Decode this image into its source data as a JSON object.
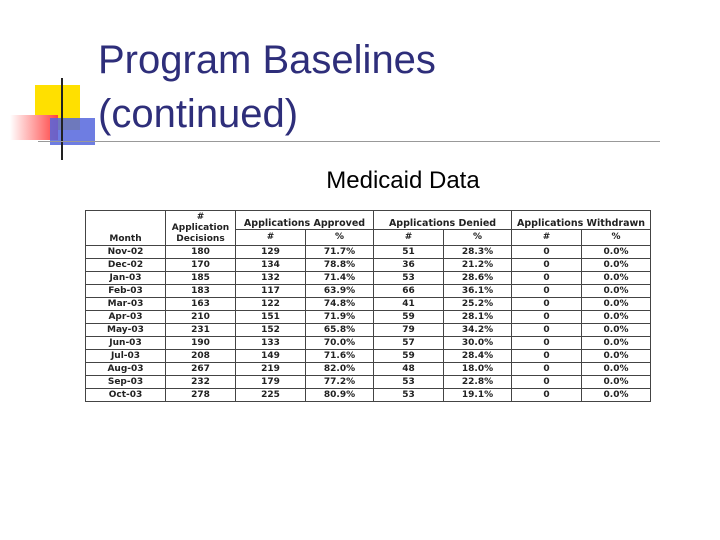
{
  "slide": {
    "title_lines": [
      "Program Baselines",
      "(continued)"
    ],
    "subtitle": "Medicaid Data"
  },
  "table": {
    "header": {
      "month": "Month",
      "decisions_lines": [
        "#",
        "Application",
        "Decisions"
      ],
      "groups": [
        "Applications Approved",
        "Applications Denied",
        "Applications Withdrawn"
      ],
      "subheaders": [
        "#",
        "%",
        "#",
        "%",
        "#",
        "%"
      ]
    },
    "rows": [
      [
        "Nov-02",
        "180",
        "129",
        "71.7%",
        "51",
        "28.3%",
        "0",
        "0.0%"
      ],
      [
        "Dec-02",
        "170",
        "134",
        "78.8%",
        "36",
        "21.2%",
        "0",
        "0.0%"
      ],
      [
        "Jan-03",
        "185",
        "132",
        "71.4%",
        "53",
        "28.6%",
        "0",
        "0.0%"
      ],
      [
        "Feb-03",
        "183",
        "117",
        "63.9%",
        "66",
        "36.1%",
        "0",
        "0.0%"
      ],
      [
        "Mar-03",
        "163",
        "122",
        "74.8%",
        "41",
        "25.2%",
        "0",
        "0.0%"
      ],
      [
        "Apr-03",
        "210",
        "151",
        "71.9%",
        "59",
        "28.1%",
        "0",
        "0.0%"
      ],
      [
        "May-03",
        "231",
        "152",
        "65.8%",
        "79",
        "34.2%",
        "0",
        "0.0%"
      ],
      [
        "Jun-03",
        "190",
        "133",
        "70.0%",
        "57",
        "30.0%",
        "0",
        "0.0%"
      ],
      [
        "Jul-03",
        "208",
        "149",
        "71.6%",
        "59",
        "28.4%",
        "0",
        "0.0%"
      ],
      [
        "Aug-03",
        "267",
        "219",
        "82.0%",
        "48",
        "18.0%",
        "0",
        "0.0%"
      ],
      [
        "Sep-03",
        "232",
        "179",
        "77.2%",
        "53",
        "22.8%",
        "0",
        "0.0%"
      ],
      [
        "Oct-03",
        "278",
        "225",
        "80.9%",
        "53",
        "19.1%",
        "0",
        "0.0%"
      ]
    ]
  }
}
